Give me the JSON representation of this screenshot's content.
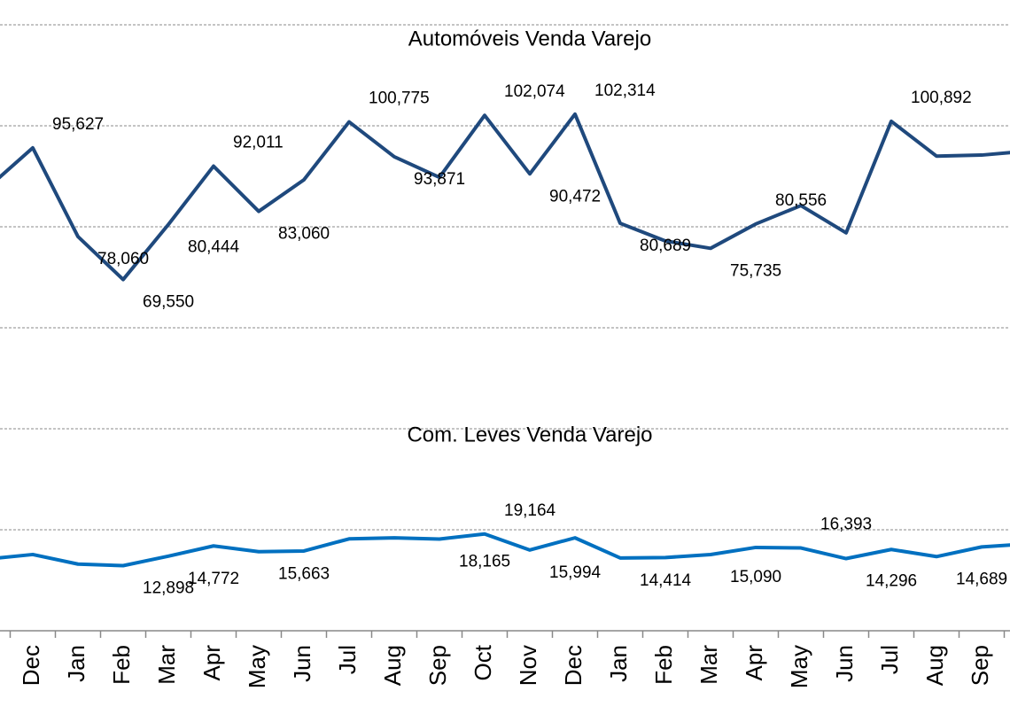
{
  "chart_data": {
    "type": "line",
    "categories": [
      null,
      "Dec",
      "Jan",
      "Feb",
      "Mar",
      "Apr",
      "May",
      "Jun",
      "Jul",
      "Aug",
      "Sep",
      "Oct",
      "Nov",
      "Dec",
      "Jan",
      "Feb",
      "Mar",
      "Apr",
      "May",
      "Jun",
      "Jul",
      "Aug",
      "Sep",
      null
    ],
    "series": [
      {
        "name": "Automóveis Venda Varejo",
        "color": "#1f497d",
        "values": [
          87700,
          95627,
          78060,
          69550,
          80444,
          92011,
          83060,
          89300,
          100775,
          93871,
          89800,
          102074,
          90472,
          102314,
          80689,
          77200,
          75735,
          80556,
          84200,
          78800,
          100892,
          94000,
          94200,
          95000
        ],
        "value_labels": [
          null,
          "95,627",
          "78,060",
          "69,550",
          "80,444",
          "92,011",
          "83,060",
          null,
          "100,775",
          "93,871",
          null,
          "102,074",
          "90,472",
          "102,314",
          "80,689",
          null,
          "75,735",
          "80,556",
          null,
          null,
          "100,892",
          null,
          null,
          null
        ]
      },
      {
        "name": "Com. Leves Venda Varejo",
        "color": "#0070c0",
        "values": [
          14200,
          15100,
          13200,
          12898,
          14772,
          16800,
          15663,
          15800,
          18200,
          18400,
          18165,
          19164,
          15994,
          18400,
          14414,
          14500,
          15090,
          16500,
          16393,
          14296,
          16100,
          14689,
          16600,
          17200
        ],
        "value_labels": [
          null,
          null,
          null,
          "12,898",
          "14,772",
          null,
          "15,663",
          null,
          null,
          null,
          "18,165",
          "19,164",
          "15,994",
          null,
          "14,414",
          null,
          "15,090",
          null,
          "16,393",
          "14,296",
          null,
          "14,689",
          null,
          null
        ]
      }
    ],
    "ylim": [
      0,
      120000
    ],
    "yticks": [
      0,
      20000,
      40000,
      60000,
      80000,
      100000,
      120000
    ],
    "grid": true
  }
}
